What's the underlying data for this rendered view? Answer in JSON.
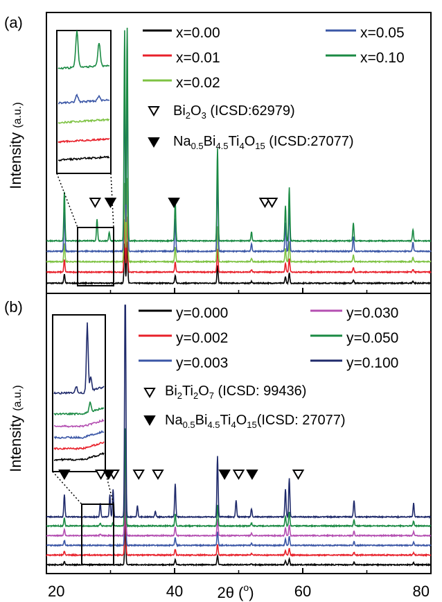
{
  "x_axis": {
    "label_main": "2θ (",
    "label_sup": "o",
    "label_end": ")",
    "ticks": [
      20,
      40,
      60,
      80
    ],
    "tick_labels": [
      "20",
      "40",
      "60",
      "80"
    ],
    "xlim": [
      20,
      80
    ]
  },
  "chart_data": [
    {
      "type": "line",
      "panel_label": "(a)",
      "ylabel": "Intensity",
      "ylabel_unit": "(a.u.)",
      "xlim": [
        20,
        80
      ],
      "series": [
        {
          "name": "x=0.00",
          "color": "#000000"
        },
        {
          "name": "x=0.01",
          "color": "#e8202a"
        },
        {
          "name": "x=0.02",
          "color": "#7dc242"
        },
        {
          "name": "x=0.05",
          "color": "#3a56a6"
        },
        {
          "name": "x=0.10",
          "color": "#1a8a43"
        }
      ],
      "peaks_2theta": [
        22.8,
        27.9,
        29.8,
        32.2,
        32.6,
        40.1,
        46.7,
        52.0,
        57.3,
        57.9,
        67.9,
        77.2
      ],
      "markers": [
        {
          "symbol": "open-triangle",
          "label": "Bi2O3 (ICSD:62979)",
          "x": [
            27.6,
            54.1,
            55.2
          ]
        },
        {
          "symbol": "filled-triangle",
          "label": "Na0.5Bi4.5Ti4O15 (ICSD:27077)",
          "x": [
            30.0,
            39.9
          ]
        }
      ],
      "inset_range": [
        27.0,
        31.0
      ]
    },
    {
      "type": "line",
      "panel_label": "(b)",
      "ylabel": "Intensity",
      "ylabel_unit": "(a.u.)",
      "xlim": [
        20,
        80
      ],
      "series": [
        {
          "name": "y=0.000",
          "color": "#000000"
        },
        {
          "name": "y=0.002",
          "color": "#e8202a"
        },
        {
          "name": "y=0.003",
          "color": "#3a56a6"
        },
        {
          "name": "y=0.030",
          "color": "#b44fb2"
        },
        {
          "name": "y=0.050",
          "color": "#1a8a43"
        },
        {
          "name": "y=0.100",
          "color": "#1f2a6b"
        }
      ],
      "peaks_2theta": [
        22.8,
        28.4,
        29.9,
        30.4,
        32.3,
        34.2,
        37.0,
        40.1,
        46.7,
        49.6,
        52.0,
        57.3,
        57.9,
        68.0,
        77.3
      ],
      "markers": [
        {
          "symbol": "open-triangle",
          "label": "Bi2Ti2O7 (ICSD: 99436)",
          "x": [
            28.5,
            30.5,
            34.4,
            37.4,
            50.0,
            59.3
          ]
        },
        {
          "symbol": "filled-triangle",
          "label": "Na0.5Bi4.5Ti4O15(ICSD: 27077)",
          "x": [
            22.8,
            29.7,
            47.8,
            52.1
          ]
        }
      ],
      "inset_range": [
        27.0,
        31.0
      ]
    }
  ],
  "legend_a": {
    "series_labels": [
      "x=0.00",
      "x=0.01",
      "x=0.02",
      "x=0.05",
      "x=0.10"
    ],
    "m1": {
      "base": "Bi",
      "s1": "2",
      "m1": "O",
      "s2": "3",
      "rest": " (ICSD:62979)"
    },
    "m2": {
      "b1": "Na",
      "s1": "0.5",
      "b2": "Bi",
      "s2": "4.5",
      "b3": "Ti",
      "s3": "4",
      "b4": "O",
      "s4": "15",
      "rest": " (ICSD:27077)"
    }
  },
  "legend_b": {
    "series_labels": [
      "y=0.000",
      "y=0.002",
      "y=0.003",
      "y=0.030",
      "y=0.050",
      "y=0.100"
    ],
    "m1": {
      "b1": "Bi",
      "s1": "2",
      "b2": "Ti",
      "s2": "2",
      "b3": "O",
      "s3": "7",
      "rest": " (ICSD: 99436)"
    },
    "m2": {
      "b1": "Na",
      "s1": "0.5",
      "b2": "Bi",
      "s2": "4.5",
      "b3": "Ti",
      "s3": "4",
      "b4": "O",
      "s4": "15",
      "rest": "(ICSD: 27077)"
    }
  }
}
